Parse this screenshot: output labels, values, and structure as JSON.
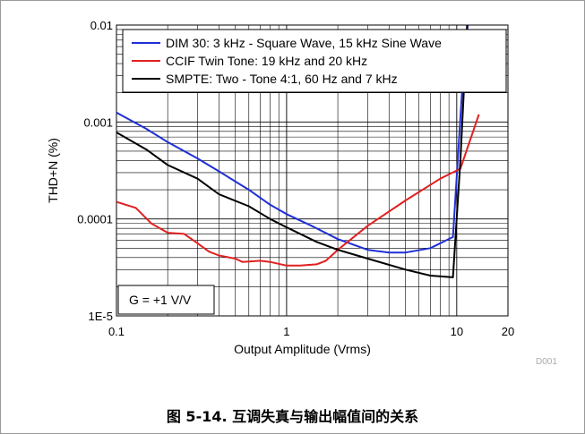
{
  "caption": "图 5-14. 互调失真与输出幅值间的关系",
  "figure_id": "D001",
  "chart_data": {
    "type": "line",
    "title": "",
    "xlabel": "Output Amplitude (Vrms)",
    "ylabel": "THD+N (%)",
    "x_scale": "log",
    "y_scale": "log",
    "xlim": [
      0.1,
      20
    ],
    "ylim": [
      1e-05,
      0.01
    ],
    "x_ticks": [
      {
        "value": 0.1,
        "label": "0.1"
      },
      {
        "value": 1,
        "label": "1"
      },
      {
        "value": 10,
        "label": "10"
      },
      {
        "value": 20,
        "label": "20"
      }
    ],
    "y_ticks": [
      {
        "value": 1e-05,
        "label": "1E-5"
      },
      {
        "value": 0.0001,
        "label": "0.0001"
      },
      {
        "value": 0.001,
        "label": "0.001"
      },
      {
        "value": 0.01,
        "label": "0.01"
      }
    ],
    "grid": true,
    "legend_position": "top-right",
    "annotation": "G = +1 V/V",
    "series": [
      {
        "name": "DIM 30: 3 kHz - Square Wave, 15 kHz Sine Wave",
        "color": "#1f2fd6",
        "x": [
          0.1,
          0.15,
          0.2,
          0.3,
          0.4,
          0.6,
          0.8,
          1.0,
          1.4,
          2.0,
          3.0,
          4.0,
          5.0,
          7.0,
          9.5,
          11.0,
          11.6
        ],
        "y": [
          0.00125,
          0.00085,
          0.00062,
          0.00042,
          0.00031,
          0.0002,
          0.00014,
          0.000112,
          8.5e-05,
          6.2e-05,
          4.8e-05,
          4.5e-05,
          4.5e-05,
          5e-05,
          6.5e-05,
          0.004,
          0.01
        ]
      },
      {
        "name": "CCIF Twin Tone: 19 kHz and 20 kHz",
        "color": "#e02020",
        "x": [
          0.1,
          0.13,
          0.16,
          0.2,
          0.25,
          0.3,
          0.35,
          0.4,
          0.5,
          0.55,
          0.7,
          0.8,
          1.0,
          1.2,
          1.5,
          1.7,
          2.0,
          3.0,
          5.0,
          8.0,
          10.5,
          13.5
        ],
        "y": [
          0.00015,
          0.00013,
          9e-05,
          7.2e-05,
          7e-05,
          5.6e-05,
          4.6e-05,
          4.2e-05,
          3.9e-05,
          3.6e-05,
          3.7e-05,
          3.6e-05,
          3.3e-05,
          3.3e-05,
          3.4e-05,
          3.7e-05,
          4.8e-05,
          8.5e-05,
          0.000155,
          0.00026,
          0.00033,
          0.0012
        ]
      },
      {
        "name": "SMPTE: Two - Tone 4:1, 60 Hz and 7 kHz",
        "color": "#000000",
        "x": [
          0.1,
          0.15,
          0.2,
          0.3,
          0.4,
          0.6,
          0.8,
          1.0,
          1.5,
          2.0,
          3.0,
          5.0,
          7.0,
          9.5,
          10.5,
          11.5
        ],
        "y": [
          0.00078,
          0.00052,
          0.00036,
          0.00026,
          0.00018,
          0.000135,
          0.0001,
          8.2e-05,
          5.8e-05,
          4.8e-05,
          3.9e-05,
          3e-05,
          2.6e-05,
          2.5e-05,
          0.0004,
          0.01
        ]
      }
    ]
  }
}
